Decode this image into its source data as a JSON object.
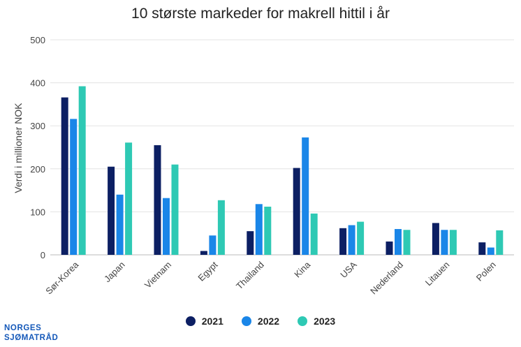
{
  "brand": {
    "line1": "NORGES",
    "line2": "SJØMATRÅD"
  },
  "colors": {
    "s2021": "#0c1f63",
    "s2022": "#1a86e8",
    "s2023": "#2ec9b4",
    "grid": "#e3e3e3",
    "axis": "#bbbbbb",
    "text": "#444444"
  },
  "chart_data": {
    "type": "bar",
    "title": "10 største markeder for makrell hittil i år",
    "xlabel": "",
    "ylabel": "Verdi i millioner NOK",
    "ylim": [
      0,
      500
    ],
    "yticks": [
      0,
      100,
      200,
      300,
      400,
      500
    ],
    "categories": [
      "Sør-Korea",
      "Japan",
      "Vietnam",
      "Egypt",
      "Thailand",
      "Kina",
      "USA",
      "Nederland",
      "Litauen",
      "Polen"
    ],
    "series": [
      {
        "name": "2021",
        "color": "#0c1f63",
        "values": [
          366,
          205,
          255,
          9,
          55,
          202,
          62,
          31,
          74,
          29
        ]
      },
      {
        "name": "2022",
        "color": "#1a86e8",
        "values": [
          316,
          140,
          132,
          45,
          118,
          273,
          69,
          60,
          58,
          17
        ]
      },
      {
        "name": "2023",
        "color": "#2ec9b4",
        "values": [
          392,
          261,
          210,
          127,
          112,
          96,
          77,
          58,
          58,
          57
        ]
      }
    ],
    "legend_position": "bottom-center"
  }
}
